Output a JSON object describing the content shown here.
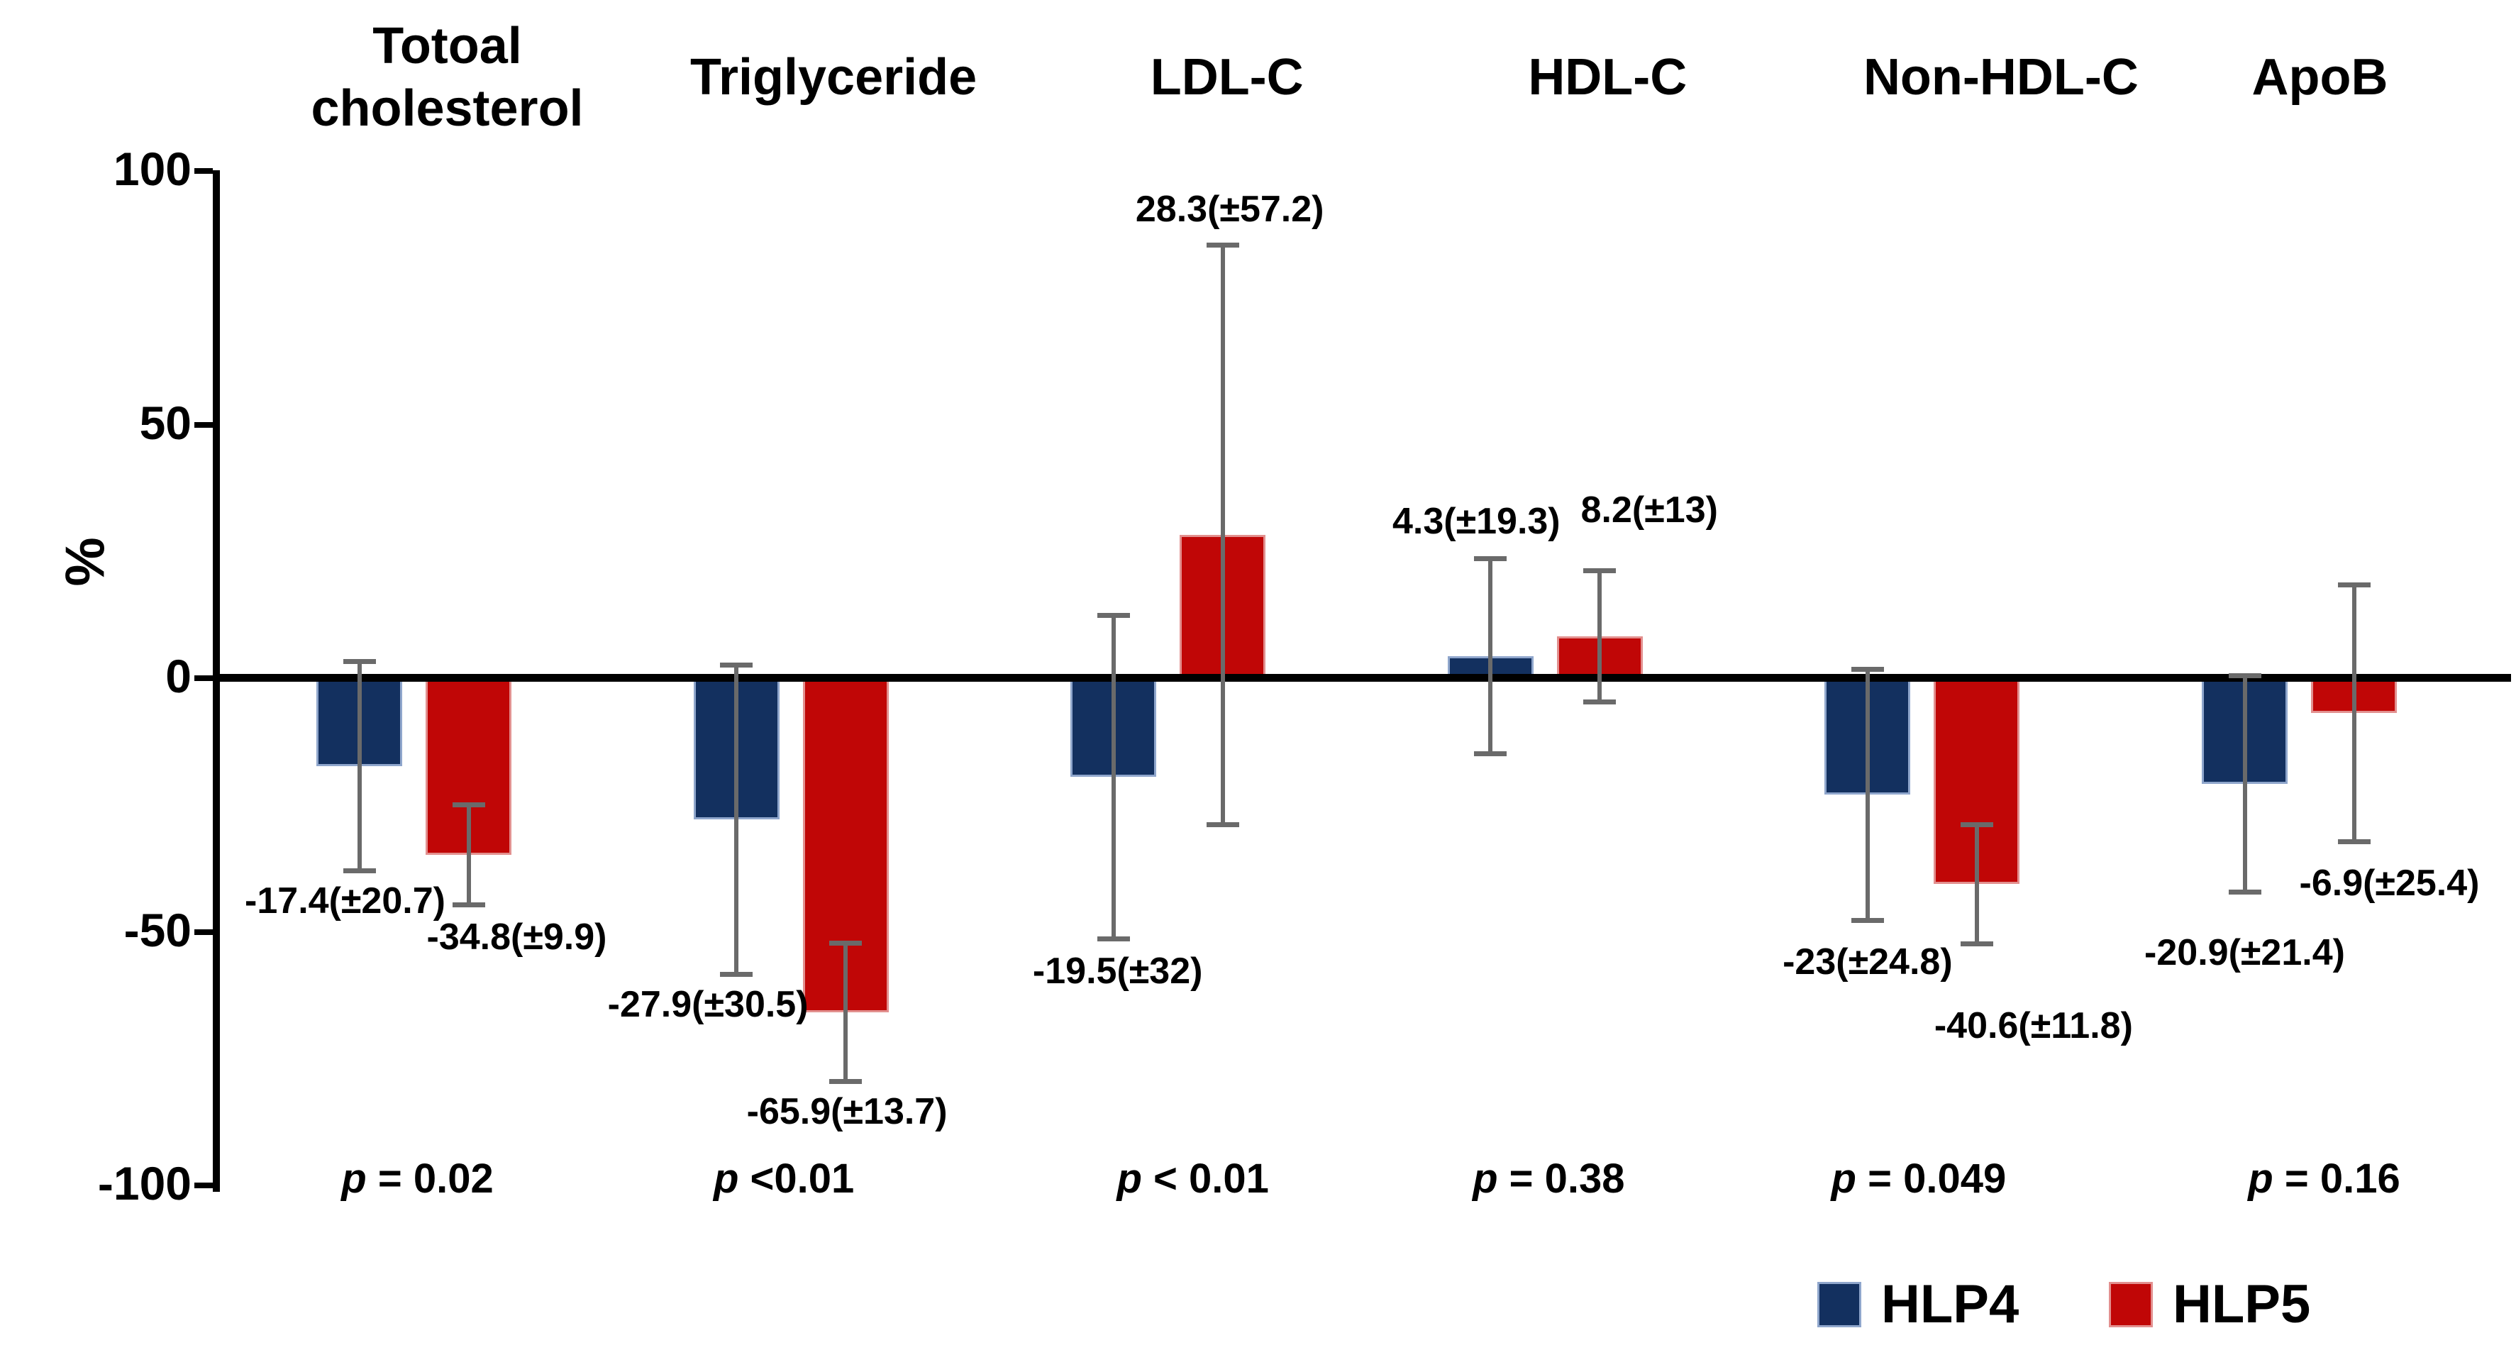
{
  "y_axis": {
    "label": "%",
    "ticks": [
      "100",
      "50",
      "0",
      "-50",
      "-100"
    ],
    "tick_values": [
      100,
      50,
      0,
      -50,
      -100
    ]
  },
  "colors": {
    "hlp4": "#13305f",
    "hlp4_border": "#8fa6cc",
    "hlp5": "#c00606",
    "hlp5_border": "#e2908f",
    "error_bar": "#6a6a6a",
    "axis": "#000000"
  },
  "chart_data": {
    "type": "bar",
    "title": "",
    "categories": [
      "Totoal cholesterol",
      "Triglyceride",
      "LDL-C",
      "HDL-C",
      "Non-HDL-C",
      "ApoB"
    ],
    "series": [
      {
        "name": "HLP4",
        "color": "#13305f",
        "border_color": "#8fa6cc",
        "values": [
          -17.4,
          -27.9,
          -19.5,
          4.3,
          -23,
          -20.9
        ],
        "sd": [
          20.7,
          30.5,
          32,
          19.3,
          24.8,
          21.4
        ],
        "labels": [
          "-17.4(±20.7)",
          "-27.9(±30.5)",
          "-19.5(±32)",
          "4.3(±19.3)",
          "-23(±24.8)",
          "-20.9(±21.4)"
        ]
      },
      {
        "name": "HLP5",
        "color": "#c00606",
        "border_color": "#e2908f",
        "values": [
          -34.8,
          -65.9,
          28.3,
          8.2,
          -40.6,
          -6.9
        ],
        "sd": [
          9.9,
          13.7,
          57.2,
          13,
          11.8,
          25.4
        ],
        "labels": [
          "-34.8(±9.9)",
          "-65.9(±13.7)",
          "28.3(±57.2)",
          "8.2(±13)",
          "-40.6(±11.8)",
          "-6.9(±25.4)"
        ]
      }
    ],
    "p_values": [
      "p = 0.02",
      "p <0.01",
      "p < 0.01",
      "p = 0.38",
      "p = 0.049",
      "p = 0.16"
    ],
    "xlabel": "",
    "ylabel": "%",
    "ylim": [
      -100,
      100
    ],
    "grid": false,
    "error_bars": true,
    "legend_position": "bottom-right"
  },
  "legend": {
    "items": [
      {
        "label": "HLP4",
        "color": "#13305f",
        "border_color": "#8fa6cc"
      },
      {
        "label": "HLP5",
        "color": "#c00606",
        "border_color": "#e2908f"
      }
    ]
  }
}
